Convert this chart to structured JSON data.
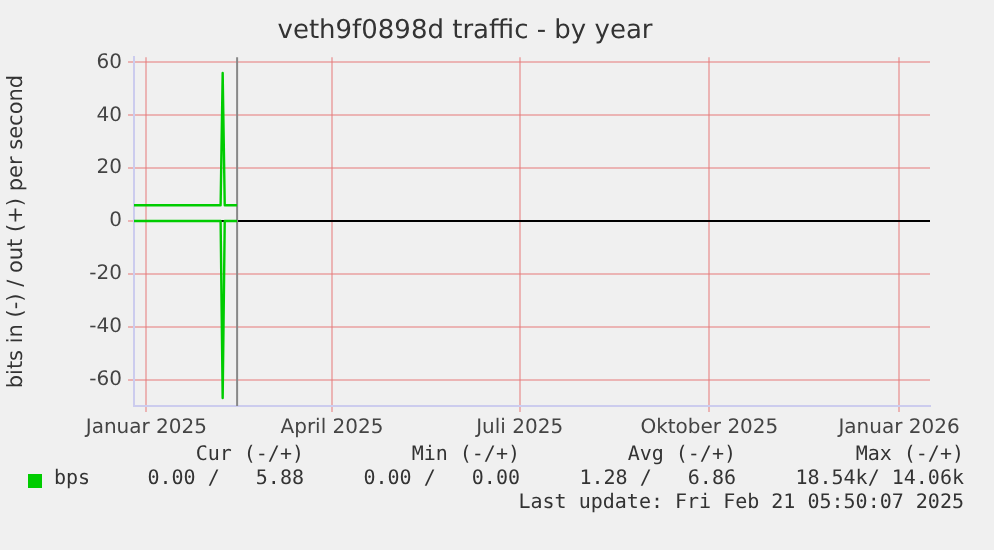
{
  "chart_data": {
    "type": "line",
    "title": "veth9f0898d traffic - by year",
    "ylabel": "bits in (-) / out (+) per second",
    "xlim": [
      "2024-12-26",
      "2026-01-16"
    ],
    "xticks": [
      {
        "value": "2025-01-01",
        "label": "Januar 2025"
      },
      {
        "value": "2025-04-01",
        "label": "April 2025"
      },
      {
        "value": "2025-07-01",
        "label": "Juli 2025"
      },
      {
        "value": "2025-10-01",
        "label": "Oktober 2025"
      },
      {
        "value": "2026-01-01",
        "label": "Januar 2026"
      }
    ],
    "ylim": [
      -70,
      62
    ],
    "yticks": [
      -60,
      -40,
      -20,
      0,
      20,
      40,
      60
    ],
    "series": [
      {
        "name": "bps",
        "color": "#00cc00",
        "x": [
          "2024-12-26",
          "2025-02-06",
          "2025-02-07",
          "2025-02-08",
          "2025-02-14"
        ],
        "values": [
          6,
          6,
          56,
          6,
          6
        ]
      },
      {
        "color": "#00cc00",
        "x": [
          "2024-12-26",
          "2025-02-06",
          "2025-02-07",
          "2025-02-08",
          "2025-02-14"
        ],
        "values": [
          0,
          0,
          -67,
          0,
          0
        ]
      }
    ],
    "ref_lines": [
      {
        "axis": "y",
        "value": 0,
        "color": "#000000"
      },
      {
        "axis": "x",
        "value": "2025-02-14",
        "color": "#888888"
      }
    ],
    "grid": true,
    "legend": "bottom",
    "marker": "none",
    "line_style": "solid",
    "annotations": [
      "Cur (-/+)",
      "Min (-/+)",
      "Avg (-/+)",
      "Max (-/+)",
      "0.00 /   5.88",
      "0.00 /   0.00",
      "1.28 /   6.86",
      "18.54k/ 14.06k",
      "Last update: Fri Feb 21 05:50:07 2025"
    ]
  }
}
